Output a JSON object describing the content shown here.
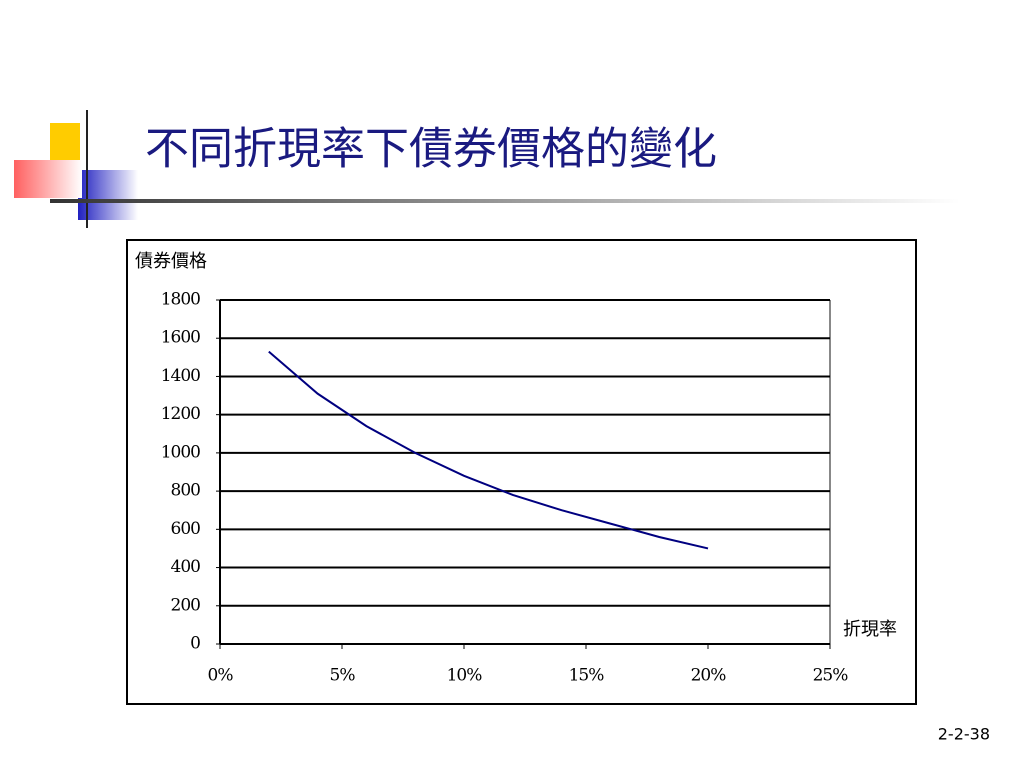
{
  "chart_data": {
    "type": "line",
    "title": "不同折現率下債券價格的變化",
    "y_label": "債券價格",
    "x_label": "折現率",
    "x": [
      2,
      4,
      6,
      8,
      10,
      12,
      14,
      16,
      18,
      20
    ],
    "series": [
      {
        "name": "債券價格",
        "color": "#000080",
        "values": [
          1530,
          1310,
          1140,
          1000,
          880,
          780,
          700,
          630,
          560,
          500
        ]
      }
    ],
    "xlim": [
      0,
      25
    ],
    "xticks": [
      {
        "value": 0,
        "label": "0%"
      },
      {
        "value": 5,
        "label": "5%"
      },
      {
        "value": 10,
        "label": "10%"
      },
      {
        "value": 15,
        "label": "15%"
      },
      {
        "value": 20,
        "label": "20%"
      },
      {
        "value": 25,
        "label": "25%"
      }
    ],
    "ylim": [
      0,
      1800
    ],
    "yticks": [
      0,
      200,
      400,
      600,
      800,
      1000,
      1200,
      1400,
      1600,
      1800
    ],
    "grid": true
  },
  "footer": {
    "page_number": "2-2-38"
  }
}
